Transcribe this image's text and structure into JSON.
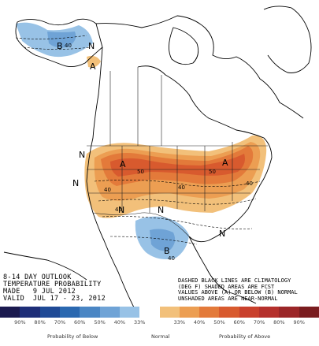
{
  "map": {
    "labels": [
      {
        "text": "B",
        "kind": "letter"
      },
      {
        "text": "N",
        "kind": "letter"
      },
      {
        "text": "A",
        "kind": "letter"
      },
      {
        "text": "A",
        "kind": "letter"
      },
      {
        "text": "A",
        "kind": "letter"
      },
      {
        "text": "N",
        "kind": "letter"
      },
      {
        "text": "N",
        "kind": "letter"
      },
      {
        "text": "N",
        "kind": "letter"
      },
      {
        "text": "N",
        "kind": "letter"
      },
      {
        "text": "N",
        "kind": "letter"
      },
      {
        "text": "B",
        "kind": "letter"
      },
      {
        "text": "40",
        "kind": "value"
      },
      {
        "text": "50",
        "kind": "value"
      },
      {
        "text": "40",
        "kind": "value"
      },
      {
        "text": "40",
        "kind": "value"
      },
      {
        "text": "40",
        "kind": "value"
      },
      {
        "text": "50",
        "kind": "value"
      },
      {
        "text": "40",
        "kind": "value"
      },
      {
        "text": "40",
        "kind": "value"
      }
    ]
  },
  "title": {
    "line1": "8-14 DAY OUTLOOK",
    "line2": "TEMPERATURE PROBABILITY",
    "line3": "MADE   9 JUL 2012",
    "line4": "VALID  JUL 17 - 23, 2012"
  },
  "notes": {
    "line1": "DASHED BLACK LINES ARE CLIMATOLOGY",
    "line2": "(DEG F) SHADED AREAS ARE FCST",
    "line3": "VALUES ABOVE (A) OR BELOW (B) NORMAL",
    "line4": "UNSHADED AREAS ARE NEAR-NORMAL"
  },
  "legend": {
    "colors": [
      "#1b1a4f",
      "#1e2e78",
      "#1f4a96",
      "#2a68b0",
      "#4a86c4",
      "#6fa3d6",
      "#98c2e6",
      "#ffffff",
      "#f2c07a",
      "#ec9e52",
      "#e37a3a",
      "#d85a2e",
      "#c9402c",
      "#b5302c",
      "#9b2628",
      "#7a1c1f"
    ],
    "ticks": [
      "90%",
      "80%",
      "70%",
      "60%",
      "50%",
      "40%",
      "33%",
      "",
      "33%",
      "40%",
      "50%",
      "60%",
      "70%",
      "80%",
      "90%"
    ],
    "below_caption": "Probability of Below",
    "normal_caption": "Normal",
    "above_caption": "Probability of Above"
  }
}
